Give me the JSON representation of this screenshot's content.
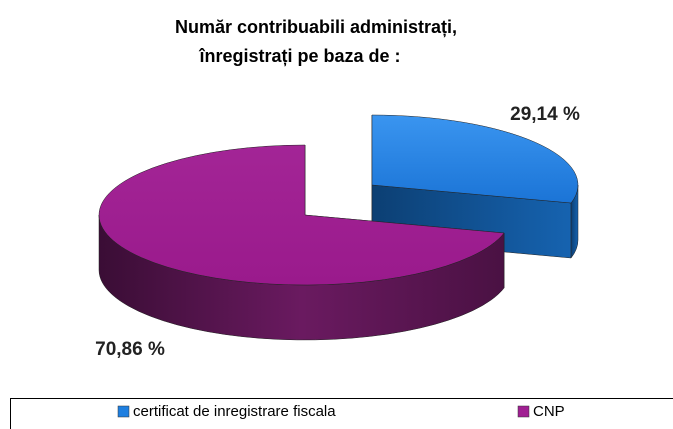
{
  "chart_data": {
    "type": "pie3d",
    "title": [
      "Număr contribuabili administrați,",
      "înregistrați pe baza de :"
    ],
    "categories": [
      "certificat de inregistrare fiscala",
      "CNP"
    ],
    "values": [
      29.14,
      70.86
    ],
    "value_labels": [
      "29,14 %",
      "70,86 %"
    ],
    "colors": [
      "#1e7fe0",
      "#a01f92"
    ],
    "legend": "bottom"
  }
}
